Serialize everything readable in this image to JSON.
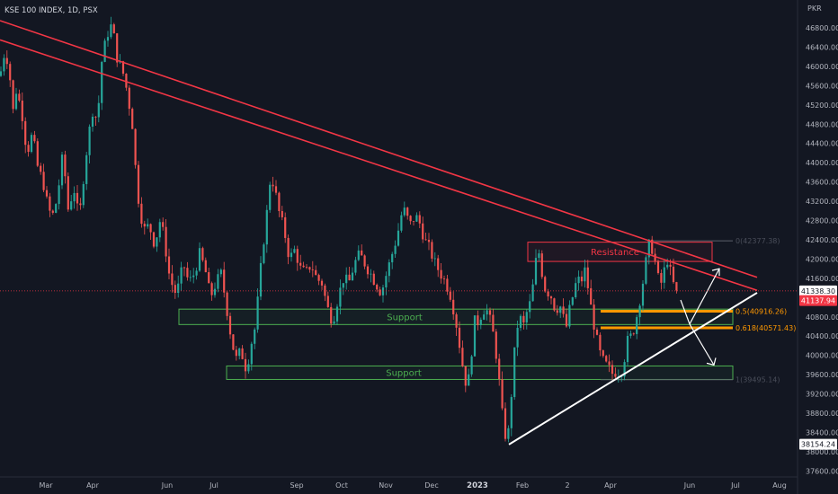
{
  "header": {
    "title": "KSE 100 INDEX, 1D, PSX",
    "currency": "PKR"
  },
  "colors": {
    "background": "#131722",
    "grid": "#1e222d",
    "up": "#26a69a",
    "down": "#ef5350",
    "trendline_red": "#f23645",
    "trendline_white": "#ffffff",
    "support": "#4caf50",
    "fib": "#ff9800",
    "axis_text": "#b2b5be"
  },
  "axes": {
    "y_ticks": [
      "46800.00",
      "46400.00",
      "46000.00",
      "45600.00",
      "45200.00",
      "44800.00",
      "44400.00",
      "44000.00",
      "43600.00",
      "43200.00",
      "42800.00",
      "42400.00",
      "42000.00",
      "41600.00",
      "40800.00",
      "40400.00",
      "40000.00",
      "39600.00",
      "39200.00",
      "38800.00",
      "38400.00",
      "38000.00",
      "37600.00"
    ],
    "x_ticks": [
      "Mar",
      "Apr",
      "Jun",
      "Jul",
      "Sep",
      "Oct",
      "Nov",
      "Dec",
      "2023",
      "Feb",
      "2",
      "Apr",
      "Jun",
      "Jul",
      "Aug"
    ]
  },
  "price_badges": {
    "top": "41338.30",
    "current": "41137.94",
    "low": "38154.24"
  },
  "annotations": {
    "resistance": "Resistance",
    "support_upper": "Support",
    "support_lower": "Support",
    "fib_05": "0.5(40916.26)",
    "fib_0618": "0.618(40571.43)",
    "fib_top_faint": "0(42377.38)",
    "fib_bottom_faint": "1(39495.14)"
  },
  "chart_data": {
    "type": "candlestick",
    "title": "KSE 100 INDEX, 1D, PSX",
    "y_unit": "PKR",
    "ylim": [
      37400,
      47200
    ],
    "grid": false,
    "x_labels": [
      "Mar",
      "Apr",
      "Jun",
      "Jul",
      "Sep",
      "Oct",
      "Nov",
      "Dec",
      "2023",
      "Feb",
      "2",
      "Apr",
      "Jun",
      "Jul",
      "Aug"
    ],
    "key_levels": {
      "last_price": 41137.94,
      "marked_price": 41338.3,
      "period_low": 38154.24,
      "fib_0": 42377.38,
      "fib_0.5": 40916.26,
      "fib_0.618": 40571.43,
      "fib_1": 39495.14
    },
    "zones": [
      {
        "name": "Resistance",
        "from": 41950,
        "to": 42350
      },
      {
        "name": "Support",
        "from": 40640,
        "to": 40960
      },
      {
        "name": "Support",
        "from": 39500,
        "to": 39780
      }
    ],
    "trendlines": [
      {
        "name": "",
        "color": "#f23645",
        "from": [
          "Feb 2022",
          46950
        ],
        "to": [
          "Jul 2023",
          41620
        ]
      },
      {
        "name": "",
        "color": "#f23645",
        "from": [
          "Feb 2022",
          46550
        ],
        "to": [
          "Jul 2023",
          41350
        ]
      },
      {
        "name": "",
        "color": "#ffffff",
        "from": [
          "Jan 2023",
          38150
        ],
        "to": [
          "Jul 2023",
          41300
        ]
      }
    ],
    "path": [
      [
        0,
        45800
      ],
      [
        5,
        46300
      ],
      [
        10,
        46050
      ],
      [
        14,
        45000
      ],
      [
        18,
        45500
      ],
      [
        24,
        45100
      ],
      [
        30,
        44200
      ],
      [
        36,
        44600
      ],
      [
        42,
        43900
      ],
      [
        48,
        43600
      ],
      [
        54,
        43000
      ],
      [
        60,
        42900
      ],
      [
        66,
        43600
      ],
      [
        70,
        44200
      ],
      [
        76,
        43000
      ],
      [
        82,
        43500
      ],
      [
        88,
        42800
      ],
      [
        94,
        43900
      ],
      [
        98,
        44500
      ],
      [
        104,
        45200
      ],
      [
        108,
        44800
      ],
      [
        114,
        46300
      ],
      [
        118,
        46500
      ],
      [
        122,
        46900
      ],
      [
        126,
        46700
      ],
      [
        130,
        46200
      ],
      [
        134,
        46000
      ],
      [
        138,
        45800
      ],
      [
        142,
        45400
      ],
      [
        148,
        44700
      ],
      [
        152,
        43500
      ],
      [
        156,
        43000
      ],
      [
        160,
        42600
      ],
      [
        166,
        42700
      ],
      [
        172,
        42300
      ],
      [
        178,
        42800
      ],
      [
        182,
        42500
      ],
      [
        188,
        41700
      ],
      [
        194,
        41300
      ],
      [
        198,
        41400
      ],
      [
        204,
        41900
      ],
      [
        210,
        41500
      ],
      [
        216,
        41700
      ],
      [
        222,
        42100
      ],
      [
        228,
        41800
      ],
      [
        234,
        41200
      ],
      [
        240,
        41500
      ],
      [
        246,
        41700
      ],
      [
        252,
        41000
      ],
      [
        256,
        40500
      ],
      [
        262,
        39900
      ],
      [
        268,
        40100
      ],
      [
        274,
        39700
      ],
      [
        280,
        40300
      ],
      [
        284,
        40600
      ],
      [
        288,
        41400
      ],
      [
        292,
        42200
      ],
      [
        296,
        42800
      ],
      [
        300,
        43600
      ],
      [
        304,
        43600
      ],
      [
        310,
        43000
      ],
      [
        316,
        42600
      ],
      [
        322,
        42000
      ],
      [
        328,
        42200
      ],
      [
        334,
        41800
      ],
      [
        340,
        41700
      ],
      [
        346,
        41900
      ],
      [
        352,
        41600
      ],
      [
        358,
        41500
      ],
      [
        364,
        41000
      ],
      [
        370,
        40700
      ],
      [
        376,
        41200
      ],
      [
        382,
        41600
      ],
      [
        388,
        41500
      ],
      [
        394,
        41900
      ],
      [
        400,
        42100
      ],
      [
        406,
        41900
      ],
      [
        412,
        41700
      ],
      [
        418,
        41500
      ],
      [
        424,
        41300
      ],
      [
        430,
        41700
      ],
      [
        436,
        42100
      ],
      [
        442,
        42500
      ],
      [
        446,
        42900
      ],
      [
        450,
        43000
      ],
      [
        456,
        42700
      ],
      [
        462,
        42900
      ],
      [
        468,
        42700
      ],
      [
        472,
        42400
      ],
      [
        478,
        42200
      ],
      [
        484,
        41900
      ],
      [
        490,
        41700
      ],
      [
        496,
        41500
      ],
      [
        502,
        41200
      ],
      [
        508,
        40600
      ],
      [
        512,
        40100
      ],
      [
        516,
        39600
      ],
      [
        520,
        39300
      ],
      [
        524,
        40000
      ],
      [
        528,
        40700
      ],
      [
        532,
        40700
      ],
      [
        536,
        40900
      ],
      [
        540,
        41000
      ],
      [
        544,
        40800
      ],
      [
        548,
        40500
      ],
      [
        552,
        40000
      ],
      [
        556,
        39300
      ],
      [
        560,
        38500
      ],
      [
        564,
        38200
      ],
      [
        566,
        38500
      ],
      [
        570,
        39500
      ],
      [
        574,
        40500
      ],
      [
        578,
        40800
      ],
      [
        582,
        40600
      ],
      [
        586,
        40900
      ],
      [
        590,
        41100
      ],
      [
        594,
        41600
      ],
      [
        598,
        42300
      ],
      [
        602,
        41800
      ],
      [
        606,
        41400
      ],
      [
        610,
        41300
      ],
      [
        614,
        41200
      ],
      [
        618,
        40900
      ],
      [
        622,
        41100
      ],
      [
        626,
        40800
      ],
      [
        630,
        40600
      ],
      [
        634,
        41000
      ],
      [
        638,
        41300
      ],
      [
        642,
        41600
      ],
      [
        646,
        41500
      ],
      [
        650,
        41800
      ],
      [
        654,
        41400
      ],
      [
        658,
        40900
      ],
      [
        662,
        40500
      ],
      [
        666,
        40100
      ],
      [
        670,
        39900
      ],
      [
        674,
        39800
      ],
      [
        678,
        39700
      ],
      [
        682,
        39600
      ],
      [
        686,
        39700
      ],
      [
        690,
        39600
      ],
      [
        694,
        39900
      ],
      [
        698,
        40300
      ],
      [
        702,
        40400
      ],
      [
        706,
        40600
      ],
      [
        710,
        41000
      ],
      [
        714,
        41400
      ],
      [
        718,
        41900
      ],
      [
        722,
        42300
      ],
      [
        726,
        42200
      ],
      [
        730,
        41800
      ],
      [
        734,
        41400
      ],
      [
        738,
        41700
      ],
      [
        742,
        42000
      ],
      [
        746,
        41700
      ],
      [
        750,
        41400
      ],
      [
        754,
        41200
      ]
    ],
    "annotations": [
      "Resistance",
      "Support",
      "Support",
      "0.5(40916.26)",
      "0.618(40571.43)"
    ]
  }
}
